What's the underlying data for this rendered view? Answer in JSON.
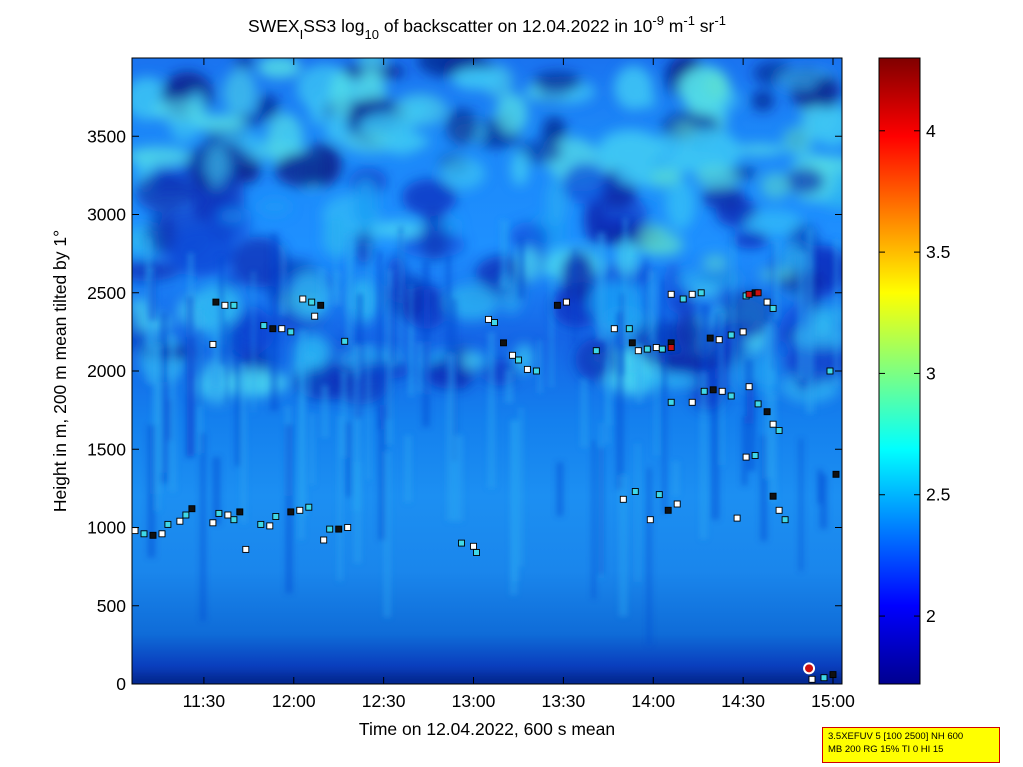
{
  "chart_data": {
    "type": "heatmap",
    "title": {
      "prefix": "SWEX",
      "prefix_sub": "I",
      "instrument": "SS3 log",
      "log_base": "10",
      "middle": " of backscatter on 12.04.2022 in 10",
      "exp1": "-9",
      "unit_m": " m",
      "exp2": "-1",
      "unit_sr": " sr",
      "exp3": "-1"
    },
    "xlabel": "Time on 12.04.2022, 600 s mean",
    "ylabel": "Height in m, 200 m mean tilted by 1°",
    "x_ticks": [
      "11:30",
      "12:00",
      "12:30",
      "13:00",
      "13:30",
      "14:00",
      "14:30",
      "15:00"
    ],
    "x_tick_minutes": [
      690,
      720,
      750,
      780,
      810,
      840,
      870,
      900
    ],
    "xlim_minutes": [
      666,
      903
    ],
    "y_ticks": [
      "0",
      "500",
      "1000",
      "1500",
      "2000",
      "2500",
      "3000",
      "3500"
    ],
    "y_tick_values": [
      0,
      500,
      1000,
      1500,
      2000,
      2500,
      3000,
      3500
    ],
    "ylim": [
      0,
      4000
    ],
    "colorbar": {
      "ticks": [
        "2",
        "2.5",
        "3",
        "3.5",
        "4"
      ],
      "tick_values": [
        2,
        2.5,
        3,
        3.5,
        4
      ],
      "range": [
        1.72,
        4.3
      ]
    },
    "cloud_layers": [
      {
        "t": 667,
        "h": 980
      },
      {
        "t": 670,
        "h": 960
      },
      {
        "t": 673,
        "h": 950
      },
      {
        "t": 676,
        "h": 960
      },
      {
        "t": 678,
        "h": 1020
      },
      {
        "t": 682,
        "h": 1040
      },
      {
        "t": 684,
        "h": 1080
      },
      {
        "t": 686,
        "h": 1120
      },
      {
        "t": 693,
        "h": 1030
      },
      {
        "t": 695,
        "h": 1090
      },
      {
        "t": 698,
        "h": 1080
      },
      {
        "t": 700,
        "h": 1050
      },
      {
        "t": 702,
        "h": 1100
      },
      {
        "t": 704,
        "h": 860
      },
      {
        "t": 709,
        "h": 1020
      },
      {
        "t": 712,
        "h": 1010
      },
      {
        "t": 714,
        "h": 1070
      },
      {
        "t": 719,
        "h": 1100
      },
      {
        "t": 722,
        "h": 1110
      },
      {
        "t": 725,
        "h": 1130
      },
      {
        "t": 730,
        "h": 920
      },
      {
        "t": 732,
        "h": 990
      },
      {
        "t": 735,
        "h": 990
      },
      {
        "t": 738,
        "h": 1000
      },
      {
        "t": 776,
        "h": 900
      },
      {
        "t": 780,
        "h": 880
      },
      {
        "t": 781,
        "h": 840
      },
      {
        "t": 694,
        "h": 2440
      },
      {
        "t": 697,
        "h": 2420
      },
      {
        "t": 700,
        "h": 2420
      },
      {
        "t": 693,
        "h": 2170
      },
      {
        "t": 710,
        "h": 2290
      },
      {
        "t": 713,
        "h": 2270
      },
      {
        "t": 716,
        "h": 2270
      },
      {
        "t": 719,
        "h": 2250
      },
      {
        "t": 723,
        "h": 2460
      },
      {
        "t": 726,
        "h": 2440
      },
      {
        "t": 729,
        "h": 2420
      },
      {
        "t": 727,
        "h": 2350
      },
      {
        "t": 737,
        "h": 2190
      },
      {
        "t": 785,
        "h": 2330
      },
      {
        "t": 787,
        "h": 2310
      },
      {
        "t": 790,
        "h": 2180
      },
      {
        "t": 793,
        "h": 2100
      },
      {
        "t": 795,
        "h": 2070
      },
      {
        "t": 798,
        "h": 2010
      },
      {
        "t": 801,
        "h": 2000
      },
      {
        "t": 808,
        "h": 2420
      },
      {
        "t": 811,
        "h": 2440
      },
      {
        "t": 821,
        "h": 2130
      },
      {
        "t": 827,
        "h": 2270
      },
      {
        "t": 832,
        "h": 2270
      },
      {
        "t": 833,
        "h": 2180
      },
      {
        "t": 835,
        "h": 2130
      },
      {
        "t": 838,
        "h": 2140
      },
      {
        "t": 841,
        "h": 2150
      },
      {
        "t": 843,
        "h": 2140
      },
      {
        "t": 846,
        "h": 2180
      },
      {
        "t": 846,
        "h": 2490
      },
      {
        "t": 850,
        "h": 2460
      },
      {
        "t": 853,
        "h": 2490
      },
      {
        "t": 856,
        "h": 2500
      },
      {
        "t": 859,
        "h": 2210
      },
      {
        "t": 862,
        "h": 2200
      },
      {
        "t": 866,
        "h": 2230
      },
      {
        "t": 870,
        "h": 2250
      },
      {
        "t": 871,
        "h": 2480
      },
      {
        "t": 874,
        "h": 2500
      },
      {
        "t": 878,
        "h": 2440
      },
      {
        "t": 880,
        "h": 2400
      },
      {
        "t": 853,
        "h": 1800
      },
      {
        "t": 857,
        "h": 1870
      },
      {
        "t": 860,
        "h": 1880
      },
      {
        "t": 863,
        "h": 1870
      },
      {
        "t": 866,
        "h": 1840
      },
      {
        "t": 872,
        "h": 1900
      },
      {
        "t": 875,
        "h": 1790
      },
      {
        "t": 878,
        "h": 1740
      },
      {
        "t": 880,
        "h": 1660
      },
      {
        "t": 882,
        "h": 1620
      },
      {
        "t": 871,
        "h": 1450
      },
      {
        "t": 874,
        "h": 1460
      },
      {
        "t": 880,
        "h": 1200
      },
      {
        "t": 882,
        "h": 1110
      },
      {
        "t": 884,
        "h": 1050
      },
      {
        "t": 868,
        "h": 1060
      },
      {
        "t": 899,
        "h": 2000
      },
      {
        "t": 901,
        "h": 1340
      },
      {
        "t": 830,
        "h": 1180
      },
      {
        "t": 834,
        "h": 1230
      },
      {
        "t": 839,
        "h": 1050
      },
      {
        "t": 842,
        "h": 1210
      },
      {
        "t": 845,
        "h": 1110
      },
      {
        "t": 848,
        "h": 1150
      },
      {
        "t": 846,
        "h": 1800
      },
      {
        "t": 893,
        "h": 30
      },
      {
        "t": 897,
        "h": 40
      },
      {
        "t": 900,
        "h": 60
      }
    ],
    "highlight_markers": [
      {
        "t": 846,
        "h": 2150
      },
      {
        "t": 872,
        "h": 2490
      },
      {
        "t": 875,
        "h": 2500
      },
      {
        "t": 892,
        "h": 100
      }
    ]
  },
  "info_box": {
    "line1": "3.5XEFUV 5 [100 2500] NH 600",
    "line2": "MB 200 RG 15% TI 0 HI 15"
  },
  "colors": {
    "frame": "#000000",
    "info_bg": "#ffff00",
    "info_border": "#d00000"
  }
}
